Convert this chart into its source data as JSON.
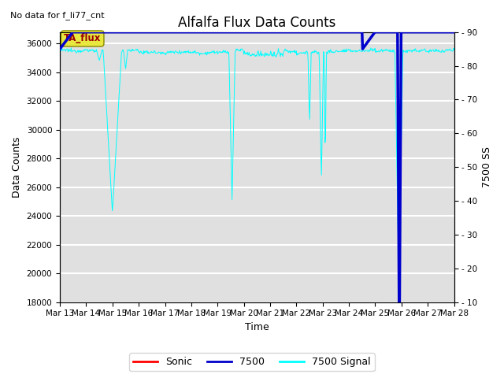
{
  "title": "Alfalfa Flux Data Counts",
  "top_left_text": "No data for f_li77_cnt",
  "xlabel": "Time",
  "ylabel_left": "Data Counts",
  "ylabel_right": "7500 SS",
  "ylim_left": [
    18000,
    36800
  ],
  "ylim_right": [
    10,
    90
  ],
  "yticks_left": [
    18000,
    20000,
    22000,
    24000,
    26000,
    28000,
    30000,
    32000,
    34000,
    36000
  ],
  "yticks_right": [
    10,
    20,
    30,
    40,
    50,
    60,
    70,
    80,
    90
  ],
  "xtick_labels": [
    "Mar 13",
    "Mar 14",
    "Mar 15",
    "Mar 16",
    "Mar 17",
    "Mar 18",
    "Mar 19",
    "Mar 20",
    "Mar 21",
    "Mar 22",
    "Mar 23",
    "Mar 24",
    "Mar 25",
    "Mar 26",
    "Mar 27",
    "Mar 28"
  ],
  "bg_color": "#e0e0e0",
  "ta_flux_box_facecolor": "#e8e840",
  "ta_flux_text_color": "#990000",
  "signal_color": "cyan",
  "line_7500_color": "#0000cc",
  "sonic_color": "red",
  "title_fontsize": 12,
  "tick_fontsize": 7.5,
  "label_fontsize": 9
}
